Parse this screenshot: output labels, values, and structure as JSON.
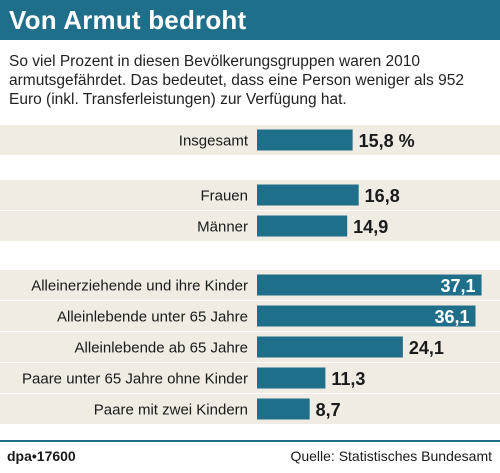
{
  "title": "Von Armut bedroht",
  "subtitle": "So viel Prozent in diesen Bevölkerungsgruppen waren 2010 armutsgefährdet. Das bedeutet, dass eine Person weniger als 952 Euro (inkl. Transferleistungen) zur Verfügung hat.",
  "footer": {
    "agency": "dpa•17600",
    "source": "Quelle: Statistisches Bundesamt"
  },
  "colors": {
    "bar": "#1f6f8b",
    "row_band": "#f0ebe3",
    "title_bg": "#1f6f8b"
  },
  "chart_data": {
    "type": "bar",
    "orientation": "horizontal",
    "value_unit": "%",
    "xlim": [
      0,
      38
    ],
    "groups": [
      {
        "categories": [
          "Insgesamt"
        ],
        "values": [
          15.8
        ],
        "labels": [
          "15,8 %"
        ]
      },
      {
        "categories": [
          "Frauen",
          "Männer"
        ],
        "values": [
          16.8,
          14.9
        ],
        "labels": [
          "16,8",
          "14,9"
        ]
      },
      {
        "categories": [
          "Alleinerziehende und ihre Kinder",
          "Alleinlebende unter 65 Jahre",
          "Alleinlebende ab 65 Jahre",
          "Paare unter 65 Jahre ohne Kinder",
          "Paare mit zwei Kindern"
        ],
        "values": [
          37.1,
          36.1,
          24.1,
          11.3,
          8.7
        ],
        "labels": [
          "37,1",
          "36,1",
          "24,1",
          "11,3",
          "8,7"
        ]
      }
    ]
  }
}
